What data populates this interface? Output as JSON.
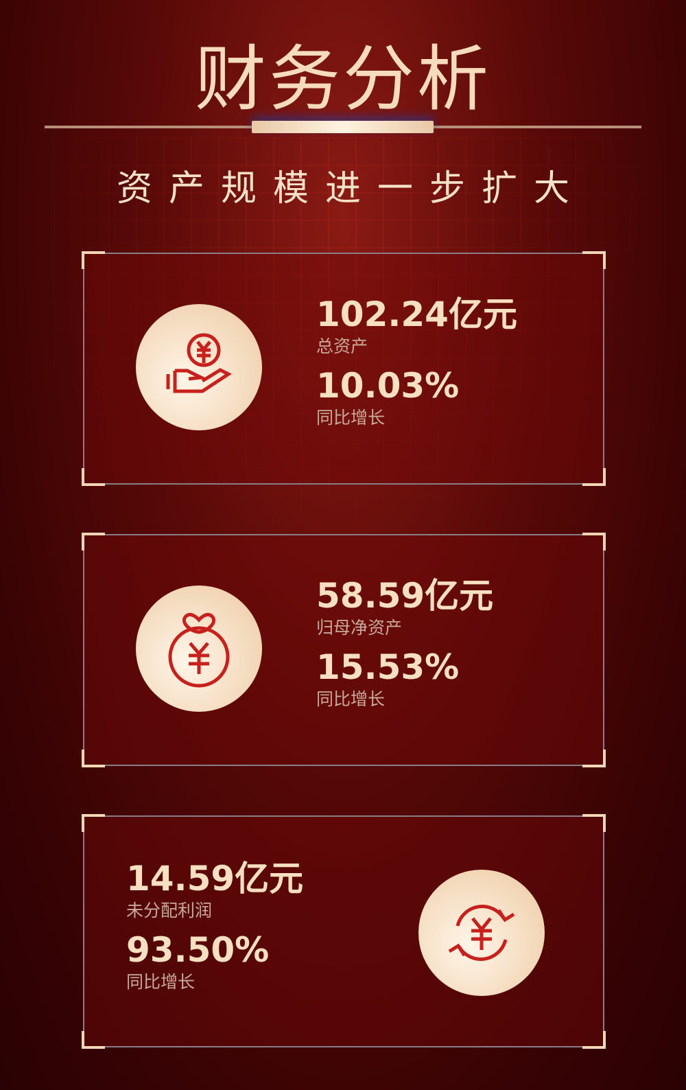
{
  "header": {
    "title": "财务分析",
    "subtitle": "资产规模进一步扩大"
  },
  "cards": [
    {
      "icon": "hand-yuan-coin-icon",
      "value": "102.24亿元",
      "value_label": "总资产",
      "growth": "10.03%",
      "growth_label": "同比增长"
    },
    {
      "icon": "money-bag-yuan-icon",
      "value": "58.59亿元",
      "value_label": "归母净资产",
      "growth": "15.53%",
      "growth_label": "同比增长"
    },
    {
      "icon": "yuan-cycle-icon",
      "value": "14.59亿元",
      "value_label": "未分配利润",
      "growth": "93.50%",
      "growth_label": "同比增长"
    }
  ],
  "colors": {
    "accent": "#f6dcbd",
    "icon_red": "#c8201c",
    "background": "#5a0a08"
  }
}
